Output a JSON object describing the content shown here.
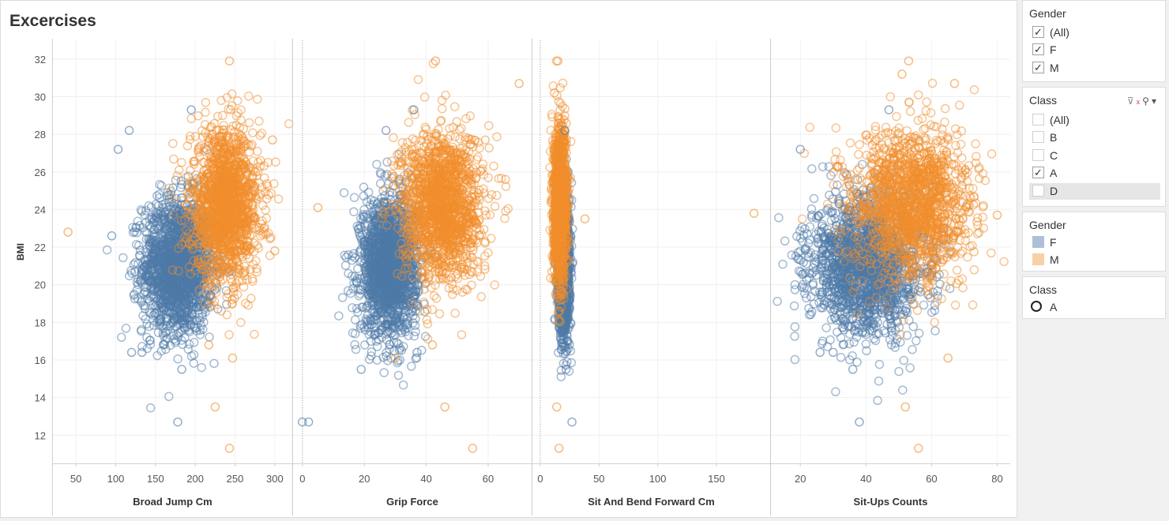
{
  "title": "Excercises",
  "colors": {
    "F": "#4e79a7",
    "M": "#f28e2b"
  },
  "chart_data": {
    "type": "scatter",
    "ylabel": "BMI",
    "ylim": [
      10.5,
      33
    ],
    "yticks": [
      12,
      14,
      16,
      18,
      20,
      22,
      24,
      26,
      28,
      30,
      32
    ],
    "grid": true,
    "marker": "open-circle",
    "series_names": [
      "F",
      "M"
    ],
    "panels": [
      {
        "xlabel": "Broad Jump Cm",
        "xlim": [
          25,
          318
        ],
        "xticks": [
          50,
          100,
          150,
          200,
          250,
          300
        ],
        "clusters": [
          {
            "series": "F",
            "n": 1700,
            "mean_x": 178,
            "sd_x": 22,
            "mean_y": 21,
            "sd_y": 1.8
          },
          {
            "series": "M",
            "n": 1500,
            "mean_x": 238,
            "sd_x": 22,
            "mean_y": 24.2,
            "sd_y": 2.0
          }
        ],
        "outliers": [
          {
            "series": "F",
            "x": 117,
            "y": 28.2
          },
          {
            "series": "F",
            "x": 103,
            "y": 27.2
          },
          {
            "series": "F",
            "x": 178,
            "y": 12.7
          },
          {
            "series": "F",
            "x": 183,
            "y": 15.5
          },
          {
            "series": "F",
            "x": 120,
            "y": 16.4
          },
          {
            "series": "F",
            "x": 133,
            "y": 16.4
          },
          {
            "series": "F",
            "x": 95,
            "y": 22.6
          },
          {
            "series": "F",
            "x": 195,
            "y": 29.3
          },
          {
            "series": "M",
            "x": 40,
            "y": 22.8
          },
          {
            "series": "M",
            "x": 243,
            "y": 11.3
          },
          {
            "series": "M",
            "x": 225,
            "y": 13.5
          },
          {
            "series": "M",
            "x": 247,
            "y": 16.1
          },
          {
            "series": "M",
            "x": 243,
            "y": 31.9
          },
          {
            "series": "M",
            "x": 297,
            "y": 27.7
          },
          {
            "series": "M",
            "x": 300,
            "y": 21.8
          },
          {
            "series": "M",
            "x": 217,
            "y": 16.8
          }
        ]
      },
      {
        "xlabel": "Grip Force",
        "xlim": [
          -2,
          73
        ],
        "xticks": [
          0,
          20,
          40,
          60
        ],
        "clusters": [
          {
            "series": "F",
            "n": 1700,
            "mean_x": 28,
            "sd_x": 4.5,
            "mean_y": 21,
            "sd_y": 1.8
          },
          {
            "series": "M",
            "n": 1500,
            "mean_x": 45,
            "sd_x": 6.5,
            "mean_y": 24.2,
            "sd_y": 2.0
          }
        ],
        "outliers": [
          {
            "series": "F",
            "x": 2,
            "y": 12.7
          },
          {
            "series": "F",
            "x": 0,
            "y": 12.7
          },
          {
            "series": "F",
            "x": 19,
            "y": 15.5
          },
          {
            "series": "F",
            "x": 27,
            "y": 28.2
          },
          {
            "series": "F",
            "x": 36,
            "y": 29.3
          },
          {
            "series": "F",
            "x": 37,
            "y": 16.4
          },
          {
            "series": "M",
            "x": 5,
            "y": 24.1
          },
          {
            "series": "M",
            "x": 55,
            "y": 11.3
          },
          {
            "series": "M",
            "x": 46,
            "y": 13.5
          },
          {
            "series": "M",
            "x": 43,
            "y": 31.9
          },
          {
            "series": "M",
            "x": 70,
            "y": 30.7
          },
          {
            "series": "M",
            "x": 30,
            "y": 16.1
          },
          {
            "series": "M",
            "x": 42,
            "y": 16.8
          }
        ]
      },
      {
        "xlabel": "Sit And Bend Forward Cm",
        "xlim": [
          -4,
          193
        ],
        "xticks": [
          0,
          50,
          100,
          150
        ],
        "clusters": [
          {
            "series": "F",
            "n": 1700,
            "mean_x": 20,
            "sd_x": 2.4,
            "mean_y": 21,
            "sd_y": 1.8
          },
          {
            "series": "M",
            "n": 1500,
            "mean_x": 17,
            "sd_x": 2.8,
            "mean_y": 24.2,
            "sd_y": 2.0
          }
        ],
        "outliers": [
          {
            "series": "F",
            "x": 27,
            "y": 12.7
          },
          {
            "series": "F",
            "x": 22,
            "y": 15.5
          },
          {
            "series": "F",
            "x": 21,
            "y": 28.2
          },
          {
            "series": "M",
            "x": 182,
            "y": 23.8
          },
          {
            "series": "M",
            "x": 16,
            "y": 11.3
          },
          {
            "series": "M",
            "x": 14,
            "y": 13.5
          },
          {
            "series": "M",
            "x": 15,
            "y": 31.9
          },
          {
            "series": "M",
            "x": 38,
            "y": 23.5
          },
          {
            "series": "M",
            "x": 12,
            "y": 30.2
          }
        ]
      },
      {
        "xlabel": "Sit-Ups Counts",
        "xlim": [
          12,
          83
        ],
        "xticks": [
          20,
          40,
          60,
          80
        ],
        "clusters": [
          {
            "series": "F",
            "n": 1700,
            "mean_x": 40,
            "sd_x": 8.5,
            "mean_y": 21,
            "sd_y": 1.8
          },
          {
            "series": "M",
            "n": 1500,
            "mean_x": 54,
            "sd_x": 9,
            "mean_y": 24.2,
            "sd_y": 2.0
          }
        ],
        "outliers": [
          {
            "series": "F",
            "x": 38,
            "y": 12.7
          },
          {
            "series": "F",
            "x": 36,
            "y": 15.5
          },
          {
            "series": "F",
            "x": 26,
            "y": 16.4
          },
          {
            "series": "F",
            "x": 30,
            "y": 16.4
          },
          {
            "series": "F",
            "x": 47,
            "y": 29.3
          },
          {
            "series": "F",
            "x": 20,
            "y": 27.2
          },
          {
            "series": "M",
            "x": 56,
            "y": 11.3
          },
          {
            "series": "M",
            "x": 52,
            "y": 13.5
          },
          {
            "series": "M",
            "x": 53,
            "y": 31.9
          },
          {
            "series": "M",
            "x": 80,
            "y": 23.7
          },
          {
            "series": "M",
            "x": 65,
            "y": 16.1
          },
          {
            "series": "M",
            "x": 51,
            "y": 31.2
          },
          {
            "series": "M",
            "x": 67,
            "y": 30.7
          }
        ]
      }
    ]
  },
  "filters": {
    "gender": {
      "title": "Gender",
      "items": [
        {
          "label": "(All)",
          "checked": true
        },
        {
          "label": "F",
          "checked": true
        },
        {
          "label": "M",
          "checked": true
        }
      ]
    },
    "class": {
      "title": "Class",
      "items": [
        {
          "label": "(All)",
          "checked": false
        },
        {
          "label": "B",
          "checked": false
        },
        {
          "label": "C",
          "checked": false
        },
        {
          "label": "A",
          "checked": true
        },
        {
          "label": "D",
          "checked": false
        }
      ]
    }
  },
  "legends": {
    "gender": {
      "title": "Gender",
      "items": [
        {
          "label": "F",
          "color": "#aec0d7"
        },
        {
          "label": "M",
          "color": "#f9cfa6"
        }
      ]
    },
    "class": {
      "title": "Class",
      "items": [
        {
          "label": "A",
          "shape": "circle"
        }
      ]
    }
  }
}
